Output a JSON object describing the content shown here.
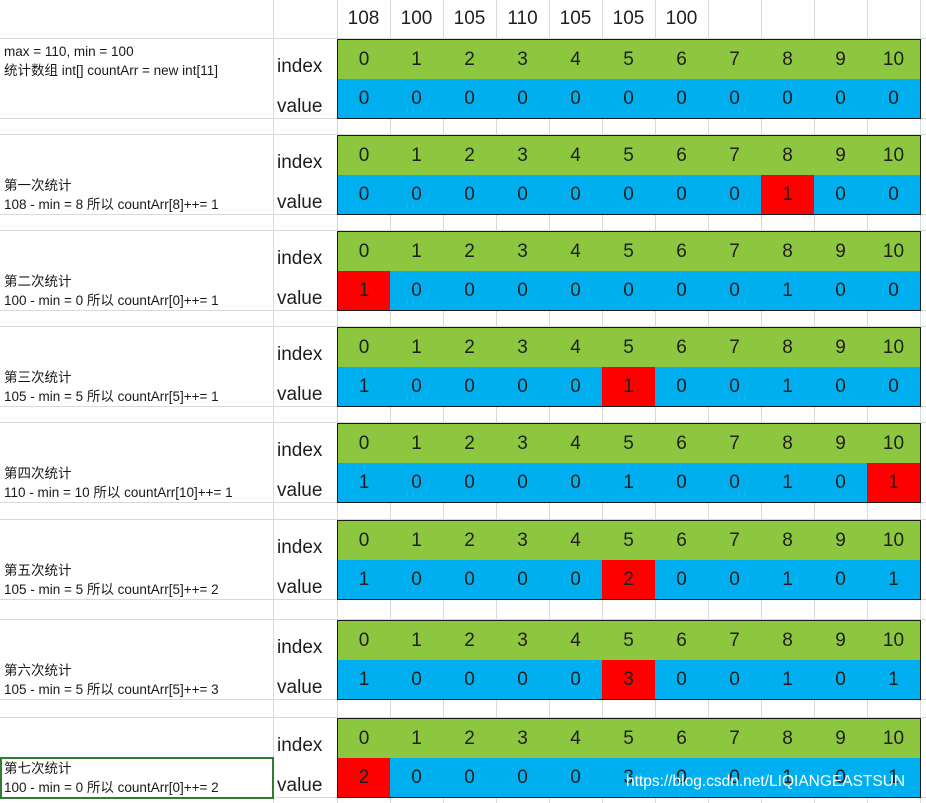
{
  "sheet": {
    "input_values": [
      "108",
      "100",
      "105",
      "110",
      "105",
      "105",
      "100"
    ],
    "colors": {
      "index_cell": "#8dc63f",
      "value_cell": "#00aff0",
      "highlight_cell": "#ff0000"
    },
    "blocks": [
      {
        "notes": [
          "max = 110, min = 100",
          "统计数组 int[] countArr = new int[11]"
        ],
        "index_label": "index",
        "value_label": "value",
        "indices": [
          "0",
          "1",
          "2",
          "3",
          "4",
          "5",
          "6",
          "7",
          "8",
          "9",
          "10"
        ],
        "values": [
          "0",
          "0",
          "0",
          "0",
          "0",
          "0",
          "0",
          "0",
          "0",
          "0",
          "0"
        ],
        "highlight": null
      },
      {
        "notes": [
          "第一次统计",
          "108 - min = 8 所以 countArr[8]++= 1"
        ],
        "index_label": "index",
        "value_label": "value",
        "indices": [
          "0",
          "1",
          "2",
          "3",
          "4",
          "5",
          "6",
          "7",
          "8",
          "9",
          "10"
        ],
        "values": [
          "0",
          "0",
          "0",
          "0",
          "0",
          "0",
          "0",
          "0",
          "1",
          "0",
          "0"
        ],
        "highlight": 8
      },
      {
        "notes": [
          "第二次统计",
          "100 - min = 0 所以  countArr[0]++= 1"
        ],
        "index_label": "index",
        "value_label": "value",
        "indices": [
          "0",
          "1",
          "2",
          "3",
          "4",
          "5",
          "6",
          "7",
          "8",
          "9",
          "10"
        ],
        "values": [
          "1",
          "0",
          "0",
          "0",
          "0",
          "0",
          "0",
          "0",
          "1",
          "0",
          "0"
        ],
        "highlight": 0
      },
      {
        "notes": [
          "第三次统计",
          "105 - min = 5 所以  countArr[5]++= 1"
        ],
        "index_label": "index",
        "value_label": "value",
        "indices": [
          "0",
          "1",
          "2",
          "3",
          "4",
          "5",
          "6",
          "7",
          "8",
          "9",
          "10"
        ],
        "values": [
          "1",
          "0",
          "0",
          "0",
          "0",
          "1",
          "0",
          "0",
          "1",
          "0",
          "0"
        ],
        "highlight": 5
      },
      {
        "notes": [
          "第四次统计",
          "110 - min = 10 所以  countArr[10]++= 1"
        ],
        "index_label": "index",
        "value_label": "value",
        "indices": [
          "0",
          "1",
          "2",
          "3",
          "4",
          "5",
          "6",
          "7",
          "8",
          "9",
          "10"
        ],
        "values": [
          "1",
          "0",
          "0",
          "0",
          "0",
          "1",
          "0",
          "0",
          "1",
          "0",
          "1"
        ],
        "highlight": 10
      },
      {
        "notes": [
          "第五次统计",
          "105 - min = 5 所以  countArr[5]++= 2"
        ],
        "index_label": "index",
        "value_label": "value",
        "indices": [
          "0",
          "1",
          "2",
          "3",
          "4",
          "5",
          "6",
          "7",
          "8",
          "9",
          "10"
        ],
        "values": [
          "1",
          "0",
          "0",
          "0",
          "0",
          "2",
          "0",
          "0",
          "1",
          "0",
          "1"
        ],
        "highlight": 5
      },
      {
        "notes": [
          "第六次统计",
          "105 - min = 5 所以  countArr[5]++= 3"
        ],
        "index_label": "index",
        "value_label": "value",
        "indices": [
          "0",
          "1",
          "2",
          "3",
          "4",
          "5",
          "6",
          "7",
          "8",
          "9",
          "10"
        ],
        "values": [
          "1",
          "0",
          "0",
          "0",
          "0",
          "3",
          "0",
          "0",
          "1",
          "0",
          "1"
        ],
        "highlight": 5
      },
      {
        "notes": [
          "第七次统计",
          "100 - min = 0 所以  countArr[0]++= 2"
        ],
        "index_label": "index",
        "value_label": "value",
        "indices": [
          "0",
          "1",
          "2",
          "3",
          "4",
          "5",
          "6",
          "7",
          "8",
          "9",
          "10"
        ],
        "values": [
          "2",
          "0",
          "0",
          "0",
          "0",
          "3",
          "0",
          "0",
          "1",
          "0",
          "1"
        ],
        "highlight": 0
      }
    ],
    "watermark": "https://blog.csdn.net/LIQIANGEASTSUN"
  }
}
